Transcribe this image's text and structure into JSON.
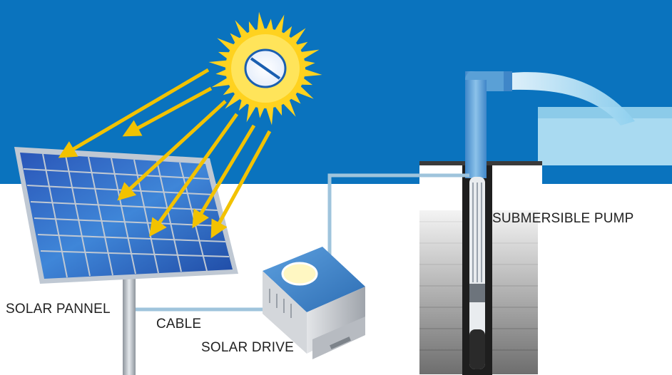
{
  "labels": {
    "solar_panel": "SOLAR PANNEL",
    "cable": "CABLE",
    "solar_drive": "SOLAR DRIVE",
    "submersible_pump": "SUBMERSIBLE PUMP"
  },
  "colors": {
    "sky": "#0a73be",
    "ground": "#ffffff",
    "sun": "#ffd21f",
    "sun_ray_arrows": "#f2c200",
    "panel_cell": "#2c63c4",
    "panel_frame": "#bfc8d3",
    "pipe": "#5aa0d6",
    "water": "#a8d8f0",
    "cable": "#9fc4dc",
    "drive_top": "#3d7fc4",
    "drive_body": "#c9ccd1"
  },
  "icons": {
    "sun": "sun-icon",
    "panel": "solar-panel-icon",
    "drive": "solar-drive-icon",
    "pump": "submersible-pump-icon"
  }
}
